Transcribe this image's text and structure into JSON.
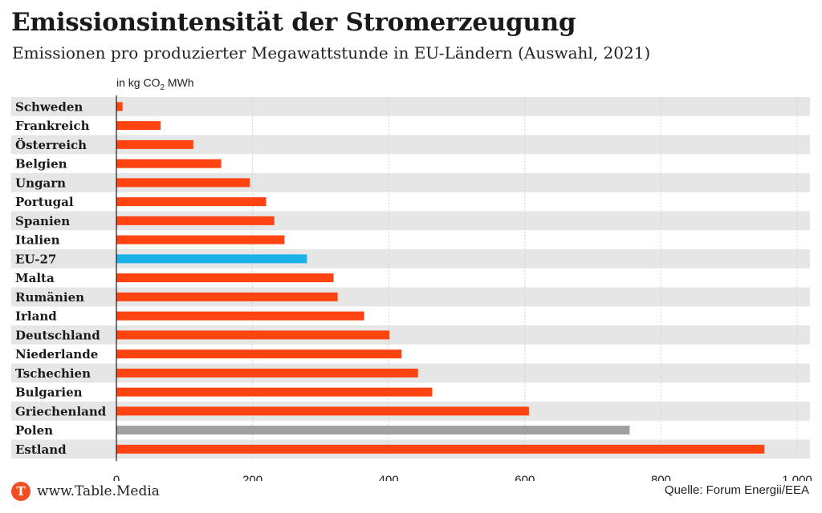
{
  "header": {
    "title": "Emissionsintensität der Stromerzeugung",
    "subtitle": "Emissionen pro produzierter Megawattstunde in EU-Ländern (Auswahl, 2021)"
  },
  "footer": {
    "brand": "www.Table.Media",
    "logo_letter": "T",
    "source": "Quelle: Forum Energii/EEA"
  },
  "colors": {
    "default_bar": "#ff4411",
    "eu_bar": "#1ab2e8",
    "highlight_bar": "#a0a0a0",
    "band": "#e6e6e6",
    "logo": "#f04e23"
  },
  "chart_data": {
    "type": "bar",
    "orientation": "horizontal",
    "unit_label": {
      "prefix": "in kg CO",
      "sub": "2",
      "suffix": " MWh"
    },
    "categories": [
      "Schweden",
      "Frankreich",
      "Österreich",
      "Belgien",
      "Ungarn",
      "Portugal",
      "Spanien",
      "Italien",
      "EU-27",
      "Malta",
      "Rumänien",
      "Irland",
      "Deutschland",
      "Niederlande",
      "Tschechien",
      "Bulgarien",
      "Griechenland",
      "Polen",
      "Estland"
    ],
    "values": [
      9,
      65,
      113,
      154,
      196,
      220,
      232,
      247,
      280,
      319,
      325,
      364,
      401,
      419,
      443,
      464,
      606,
      754,
      952
    ],
    "bar_colors": [
      "default",
      "default",
      "default",
      "default",
      "default",
      "default",
      "default",
      "default",
      "eu",
      "default",
      "default",
      "default",
      "default",
      "default",
      "default",
      "default",
      "default",
      "highlight",
      "default"
    ],
    "xlim": [
      0,
      1000
    ],
    "xticks": [
      0,
      200,
      400,
      600,
      800,
      1000
    ],
    "xtick_labels": [
      "0",
      "200",
      "400",
      "600",
      "800",
      "1.000"
    ],
    "grid": "vertical",
    "banded_rows": true
  }
}
